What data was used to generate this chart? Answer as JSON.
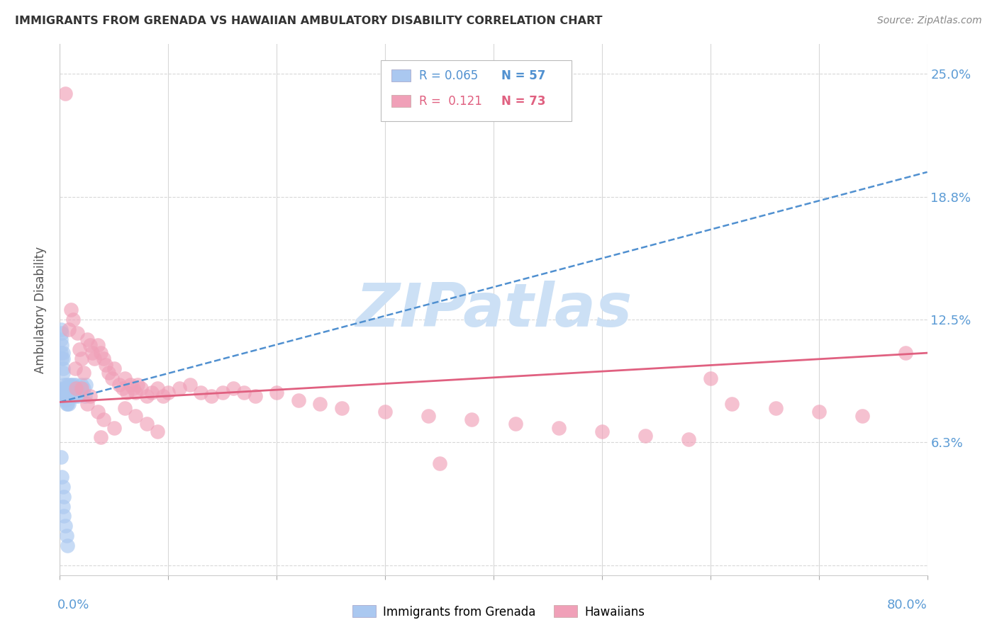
{
  "title": "IMMIGRANTS FROM GRENADA VS HAWAIIAN AMBULATORY DISABILITY CORRELATION CHART",
  "source": "Source: ZipAtlas.com",
  "ylabel": "Ambulatory Disability",
  "yticks": [
    0.0,
    0.0625,
    0.125,
    0.1875,
    0.25
  ],
  "ytick_labels": [
    "",
    "6.3%",
    "12.5%",
    "18.8%",
    "25.0%"
  ],
  "xlim": [
    0.0,
    0.8
  ],
  "ylim": [
    -0.005,
    0.265
  ],
  "legend_r1": "R = 0.065",
  "legend_n1": "N = 57",
  "legend_r2": "R =  0.121",
  "legend_n2": "N = 73",
  "blue_color": "#aac8f0",
  "pink_color": "#f0a0b8",
  "blue_line_color": "#5090d0",
  "pink_line_color": "#e06080",
  "title_color": "#333333",
  "axis_label_color": "#5b9bd5",
  "watermark_color": "#cce0f5",
  "blue_scatter_x": [
    0.001,
    0.001,
    0.001,
    0.002,
    0.002,
    0.002,
    0.003,
    0.003,
    0.003,
    0.003,
    0.004,
    0.004,
    0.004,
    0.004,
    0.005,
    0.005,
    0.005,
    0.005,
    0.006,
    0.006,
    0.006,
    0.006,
    0.007,
    0.007,
    0.007,
    0.008,
    0.008,
    0.008,
    0.009,
    0.009,
    0.01,
    0.01,
    0.011,
    0.011,
    0.012,
    0.012,
    0.013,
    0.014,
    0.015,
    0.016,
    0.017,
    0.018,
    0.019,
    0.02,
    0.021,
    0.022,
    0.023,
    0.024,
    0.001,
    0.002,
    0.003,
    0.004,
    0.003,
    0.004,
    0.005,
    0.006,
    0.007
  ],
  "blue_scatter_y": [
    0.12,
    0.115,
    0.108,
    0.118,
    0.112,
    0.105,
    0.108,
    0.105,
    0.1,
    0.098,
    0.092,
    0.09,
    0.088,
    0.086,
    0.09,
    0.088,
    0.086,
    0.084,
    0.092,
    0.09,
    0.086,
    0.082,
    0.09,
    0.086,
    0.082,
    0.092,
    0.088,
    0.082,
    0.09,
    0.086,
    0.092,
    0.088,
    0.09,
    0.086,
    0.092,
    0.088,
    0.09,
    0.086,
    0.092,
    0.09,
    0.086,
    0.088,
    0.09,
    0.092,
    0.088,
    0.09,
    0.086,
    0.092,
    0.055,
    0.045,
    0.04,
    0.035,
    0.03,
    0.025,
    0.02,
    0.015,
    0.01
  ],
  "pink_scatter_x": [
    0.005,
    0.008,
    0.01,
    0.012,
    0.014,
    0.015,
    0.016,
    0.018,
    0.02,
    0.022,
    0.025,
    0.028,
    0.03,
    0.032,
    0.035,
    0.038,
    0.04,
    0.042,
    0.045,
    0.048,
    0.05,
    0.055,
    0.058,
    0.06,
    0.062,
    0.065,
    0.068,
    0.07,
    0.072,
    0.075,
    0.08,
    0.085,
    0.09,
    0.095,
    0.1,
    0.11,
    0.12,
    0.13,
    0.14,
    0.15,
    0.16,
    0.17,
    0.18,
    0.2,
    0.22,
    0.24,
    0.26,
    0.3,
    0.34,
    0.38,
    0.42,
    0.46,
    0.5,
    0.54,
    0.58,
    0.62,
    0.66,
    0.7,
    0.74,
    0.78,
    0.025,
    0.035,
    0.04,
    0.05,
    0.06,
    0.07,
    0.08,
    0.09,
    0.35,
    0.6,
    0.02,
    0.028,
    0.038
  ],
  "pink_scatter_y": [
    0.24,
    0.12,
    0.13,
    0.125,
    0.1,
    0.09,
    0.118,
    0.11,
    0.105,
    0.098,
    0.115,
    0.112,
    0.108,
    0.105,
    0.112,
    0.108,
    0.105,
    0.102,
    0.098,
    0.095,
    0.1,
    0.092,
    0.09,
    0.095,
    0.088,
    0.092,
    0.09,
    0.088,
    0.092,
    0.09,
    0.086,
    0.088,
    0.09,
    0.086,
    0.088,
    0.09,
    0.092,
    0.088,
    0.086,
    0.088,
    0.09,
    0.088,
    0.086,
    0.088,
    0.084,
    0.082,
    0.08,
    0.078,
    0.076,
    0.074,
    0.072,
    0.07,
    0.068,
    0.066,
    0.064,
    0.082,
    0.08,
    0.078,
    0.076,
    0.108,
    0.082,
    0.078,
    0.074,
    0.07,
    0.08,
    0.076,
    0.072,
    0.068,
    0.052,
    0.095,
    0.09,
    0.086,
    0.065
  ],
  "blue_trend_x": [
    0.0,
    0.8
  ],
  "blue_trend_y": [
    0.083,
    0.2
  ],
  "pink_trend_x": [
    0.0,
    0.8
  ],
  "pink_trend_y": [
    0.083,
    0.108
  ],
  "grid_x": [
    0.0,
    0.1,
    0.2,
    0.3,
    0.4,
    0.5,
    0.6,
    0.7,
    0.8
  ],
  "grid_color": "#d8d8d8"
}
